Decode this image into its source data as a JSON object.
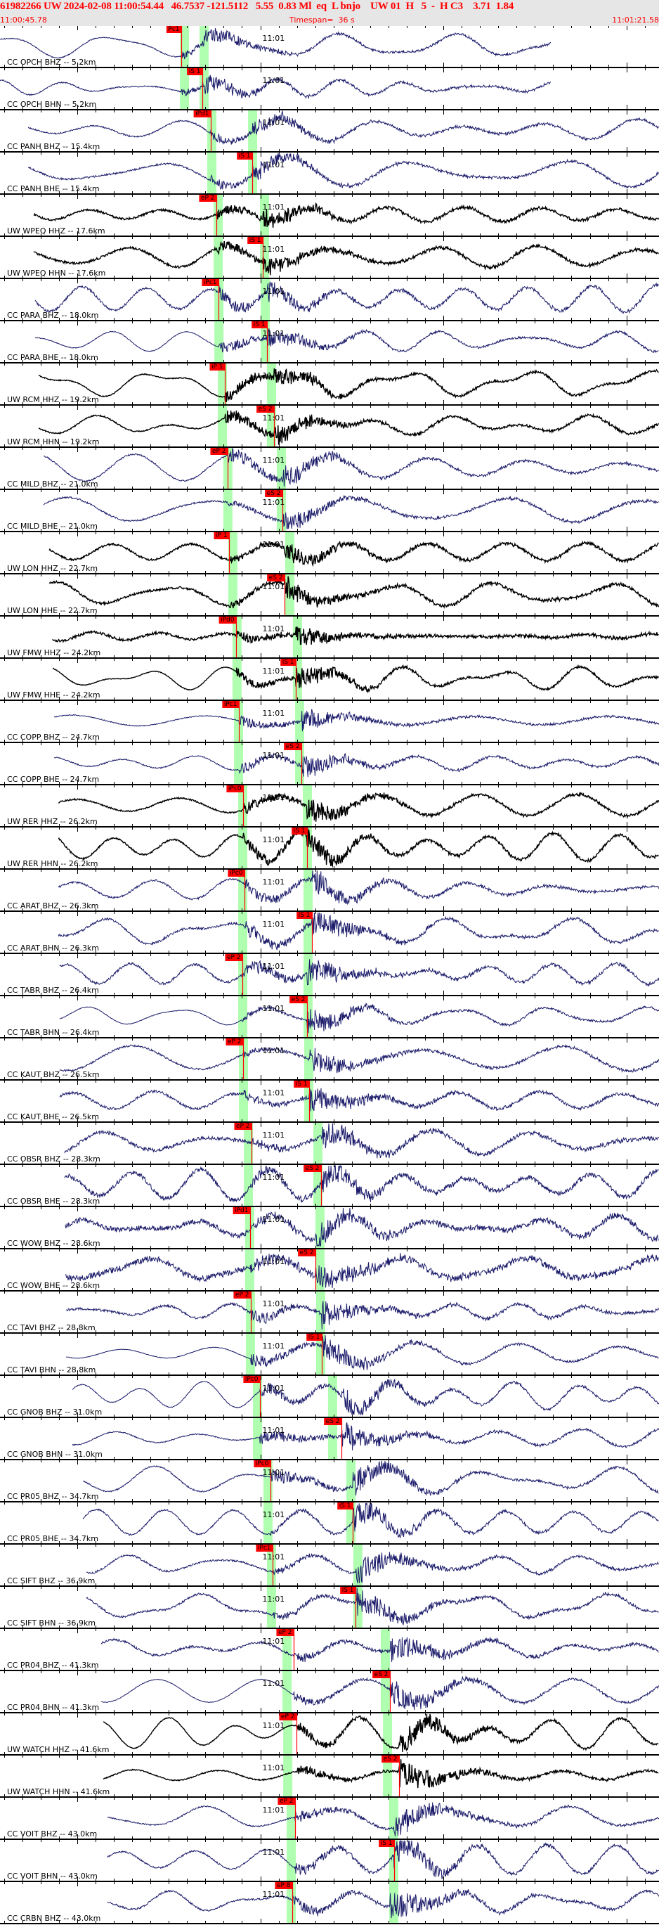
{
  "header": {
    "event_line": "61982266 UW 2024-02-08 11:00:54.44   46.7537 -121.5112   5.55  0.83 Ml  eq  L bnjo    UW 01  H   5  -  H C3    3.71  1.84",
    "start_time": "11:00:45.78",
    "timespan": "Timespan=  36 s",
    "end_time": "11:01:21.58"
  },
  "timespan_s": 36,
  "minute_mark": {
    "label": "11:01",
    "t": 14.22
  },
  "colors": {
    "header_bg": "#e6e6e6",
    "header_text": "#ff0000",
    "cc_trace": "#1c1c6b",
    "uw_trace": "#000000",
    "pick": "#ff0000",
    "window": "#b0ffb0"
  },
  "panels": [
    {
      "label": "CC OPCH BHZ -- 5.2km",
      "net": "cc",
      "start_s": 0,
      "end_s": 30.1,
      "p_win": 9.83,
      "s_win": 10.9,
      "pick": {
        "label": "Pc1",
        "t": 9.9
      },
      "p": 9.9,
      "s": 11.05
    },
    {
      "label": "CC OPCH BHN -- 5.2km",
      "net": "cc",
      "start_s": 0,
      "end_s": 30.1,
      "p_win": 9.83,
      "s_win": 10.9,
      "pick": {
        "label": "iS 1",
        "t": 11.05
      },
      "p": 9.9,
      "s": 11.05
    },
    {
      "label": "CC PANH BHZ -- 15.4km",
      "net": "cc",
      "start_s": 1.54,
      "p_win": 11.32,
      "s_win": 13.55,
      "pick": {
        "label": "iPd1",
        "t": 11.51
      },
      "p": 11.51,
      "s": 13.78
    },
    {
      "label": "CC PANH BHE -- 15.4km",
      "net": "cc",
      "start_s": 1.54,
      "p_win": 11.32,
      "s_win": 13.55,
      "pick": {
        "label": "iS 1",
        "t": 13.78
      },
      "p": 11.51,
      "s": 13.78
    },
    {
      "label": "UW WPEQ HHZ -- 17.6km",
      "net": "uw",
      "start_s": 1.84,
      "p_win": 11.67,
      "s_win": 14.2,
      "pick": {
        "label": "eP 2",
        "t": 11.82
      },
      "p": 11.82,
      "s": 14.35
    },
    {
      "label": "UW WPEQ HHN -- 17.6km",
      "net": "uw",
      "start_s": 1.84,
      "p_win": 11.67,
      "s_win": 14.2,
      "pick": {
        "label": "iS 1",
        "t": 14.35
      },
      "p": 11.82,
      "s": 14.35
    },
    {
      "label": "CC PARA BHZ -- 18.0km",
      "net": "cc",
      "start_s": 1.92,
      "p_win": 11.71,
      "s_win": 14.24,
      "pick": {
        "label": "iPc1",
        "t": 11.94
      },
      "p": 11.94,
      "s": 14.58
    },
    {
      "label": "CC PARA BHE -- 18.0km",
      "net": "cc",
      "start_s": 1.92,
      "p_win": 11.71,
      "s_win": 14.24,
      "pick": {
        "label": "iS 1",
        "t": 14.58
      },
      "p": 11.94,
      "s": 14.58
    },
    {
      "label": "UW RCM HHZ -- 19.2km",
      "net": "uw",
      "start_s": 2.11,
      "p_win": 11.9,
      "s_win": 14.58,
      "pick": {
        "label": "iP 1",
        "t": 12.28
      },
      "p": 12.28,
      "s": 14.97
    },
    {
      "label": "UW RCM HHN -- 19.2km",
      "net": "uw",
      "start_s": 2.11,
      "p_win": 11.9,
      "s_win": 14.58,
      "pick": {
        "label": "eS 2",
        "t": 14.97
      },
      "p": 12.28,
      "s": 14.97
    },
    {
      "label": "CC MILD BHZ -- 21.0km",
      "net": "cc",
      "start_s": 2.38,
      "p_win": 12.2,
      "s_win": 15.12,
      "pick": {
        "label": "eP 2",
        "t": 12.43
      },
      "p": 12.43,
      "s": 15.43
    },
    {
      "label": "CC MILD BHE -- 21.0km",
      "net": "cc",
      "start_s": 2.38,
      "p_win": 12.2,
      "s_win": 15.12,
      "pick": {
        "label": "eS 2",
        "t": 15.43
      },
      "p": 12.43,
      "s": 15.43
    },
    {
      "label": "UW LON HHZ -- 22.7km",
      "net": "uw",
      "start_s": 2.69,
      "p_win": 12.47,
      "s_win": 15.58,
      "pick": {
        "label": "iP 1",
        "t": 12.51
      },
      "p": 12.51,
      "s": 15.54
    },
    {
      "label": "UW LON HHE -- 22.7km",
      "net": "uw",
      "start_s": 2.69,
      "p_win": 12.47,
      "s_win": 15.58,
      "pick": {
        "label": "eS 2",
        "t": 15.54
      },
      "p": 12.51,
      "s": 15.54
    },
    {
      "label": "UW FMW HHZ -- 24.2km",
      "net": "uw",
      "start_s": 2.88,
      "p_win": 12.7,
      "s_win": 16.0,
      "pick": {
        "label": "iPd0",
        "t": 12.9
      },
      "p": 12.9,
      "s": 16.16
    },
    {
      "label": "UW FMW HHE -- 24.2km",
      "net": "uw",
      "start_s": 2.88,
      "p_win": 12.7,
      "s_win": 16.0,
      "pick": {
        "label": "iS 1",
        "t": 16.16
      },
      "p": 12.9,
      "s": 16.16
    },
    {
      "label": "CC COPP BHZ -- 24.7km",
      "net": "cc",
      "start_s": 2.96,
      "p_win": 12.78,
      "s_win": 16.12,
      "pick": {
        "label": "iPc1",
        "t": 13.05
      },
      "p": 13.05,
      "s": 16.46
    },
    {
      "label": "CC COPP BHE -- 24.7km",
      "net": "cc",
      "start_s": 2.96,
      "p_win": 12.78,
      "s_win": 16.12,
      "pick": {
        "label": "eS 2",
        "t": 16.46
      },
      "p": 13.05,
      "s": 16.46
    },
    {
      "label": "UW RER HHZ -- 26.2km",
      "net": "uw",
      "start_s": 3.19,
      "p_win": 13.01,
      "s_win": 16.54,
      "pick": {
        "label": "iPc0",
        "t": 13.28
      },
      "p": 13.28,
      "s": 16.77
    },
    {
      "label": "UW RER HHN -- 26.2km",
      "net": "uw",
      "start_s": 3.19,
      "p_win": 13.01,
      "s_win": 16.54,
      "pick": {
        "label": "iS 1",
        "t": 16.77
      },
      "p": 13.28,
      "s": 16.77
    },
    {
      "label": "CC ARAT BHZ -- 26.3km",
      "net": "cc",
      "start_s": 3.19,
      "p_win": 13.01,
      "s_win": 16.58,
      "pick": {
        "label": "iPc0",
        "t": 13.36
      },
      "p": 13.36,
      "s": 17.04
    },
    {
      "label": "CC ARAT BHN -- 26.3km",
      "net": "cc",
      "start_s": 3.19,
      "p_win": 13.01,
      "s_win": 16.58,
      "pick": {
        "label": "iS 1",
        "t": 17.04
      },
      "p": 13.36,
      "s": 17.04
    },
    {
      "label": "CC TABR BHZ -- 26.4km",
      "net": "cc",
      "start_s": 3.26,
      "p_win": 13.01,
      "s_win": 16.58,
      "pick": {
        "label": "eP 2",
        "t": 13.24
      },
      "p": 13.24,
      "s": 16.77
    },
    {
      "label": "CC TABR BHN -- 26.4km",
      "net": "cc",
      "start_s": 3.26,
      "p_win": 13.01,
      "s_win": 16.58,
      "pick": {
        "label": "eS 2",
        "t": 16.77
      },
      "p": 13.24,
      "s": 16.77
    },
    {
      "label": "CC KAUT BHZ -- 26.5km",
      "net": "cc",
      "start_s": 3.26,
      "p_win": 13.05,
      "s_win": 16.62,
      "pick": {
        "label": "eP 2",
        "t": 13.28
      },
      "p": 13.28,
      "s": 16.89
    },
    {
      "label": "CC KAUT BHE -- 26.5km",
      "net": "cc",
      "start_s": 3.26,
      "p_win": 13.05,
      "s_win": 16.62,
      "pick": {
        "label": "iS 1",
        "t": 16.89
      },
      "p": 13.28,
      "s": 16.89
    },
    {
      "label": "CC OBSR BHZ -- 28.3km",
      "net": "cc",
      "start_s": 3.53,
      "p_win": 13.32,
      "s_win": 17.12,
      "pick": {
        "label": "eP 2",
        "t": 13.74
      },
      "p": 13.74,
      "s": 17.54
    },
    {
      "label": "CC OBSR BHE -- 28.3km",
      "net": "cc",
      "start_s": 3.53,
      "p_win": 13.32,
      "s_win": 17.12,
      "pick": {
        "label": "eS 2",
        "t": 17.54
      },
      "p": 13.74,
      "s": 17.54
    },
    {
      "label": "CC WOW BHZ -- 28.6km",
      "net": "cc",
      "start_s": 3.57,
      "p_win": 13.39,
      "s_win": 17.23,
      "pick": {
        "label": "iPd1",
        "t": 13.66
      },
      "p": 13.66,
      "s": 17.23
    },
    {
      "label": "CC WOW BHE -- 28.6km",
      "net": "cc",
      "start_s": 3.57,
      "p_win": 13.39,
      "s_win": 17.23,
      "pick": {
        "label": "eS 2",
        "t": 17.23
      },
      "p": 13.66,
      "s": 17.23
    },
    {
      "label": "CC TAVI BHZ -- 28.8km",
      "net": "cc",
      "start_s": 3.61,
      "p_win": 13.43,
      "s_win": 17.27,
      "pick": {
        "label": "eP 2",
        "t": 13.7
      },
      "p": 13.7,
      "s": 17.58
    },
    {
      "label": "CC TAVI BHN -- 28.8km",
      "net": "cc",
      "start_s": 3.61,
      "p_win": 13.43,
      "s_win": 17.27,
      "pick": {
        "label": "iS 1",
        "t": 17.58
      },
      "p": 13.7,
      "s": 17.58
    },
    {
      "label": "CC GNOB BHZ -- 31.0km",
      "net": "cc",
      "start_s": 3.95,
      "p_win": 13.82,
      "s_win": 17.92,
      "pick": {
        "label": "iPc0",
        "t": 14.2
      },
      "p": 14.2,
      "s": 18.65
    },
    {
      "label": "CC GNOB BHN -- 31.0km",
      "net": "cc",
      "start_s": 3.95,
      "p_win": 13.82,
      "s_win": 17.92,
      "pick": {
        "label": "eS 2",
        "t": 18.65
      },
      "p": 14.2,
      "s": 18.65
    },
    {
      "label": "CC PR05 BHZ -- 34.7km",
      "net": "cc",
      "start_s": 4.53,
      "p_win": 14.39,
      "s_win": 18.92,
      "pick": {
        "label": "iPc0",
        "t": 14.78
      },
      "p": 14.78,
      "s": 19.27
    },
    {
      "label": "CC PR05 BHE -- 34.7km",
      "net": "cc",
      "start_s": 4.53,
      "p_win": 14.39,
      "s_win": 18.92,
      "pick": {
        "label": "iS 1",
        "t": 19.27
      },
      "p": 14.78,
      "s": 19.27
    },
    {
      "label": "CC SIFT BHZ -- 36.9km",
      "net": "cc",
      "start_s": 4.72,
      "p_win": 14.58,
      "s_win": 19.3,
      "pick": {
        "label": "iPc1",
        "t": 14.89
      },
      "p": 14.89,
      "s": 19.42
    },
    {
      "label": "CC SIFT BHN -- 36.9km",
      "net": "cc",
      "start_s": 4.72,
      "p_win": 14.58,
      "s_win": 19.3,
      "pick": {
        "label": "iS 1",
        "t": 19.42
      },
      "p": 14.89,
      "s": 19.42
    },
    {
      "label": "CC PR04 BHZ -- 41.3km",
      "net": "cc",
      "start_s": 5.53,
      "p_win": 15.43,
      "s_win": 20.8,
      "pick": {
        "label": "eP 2",
        "t": 16.04
      },
      "p": 16.04,
      "s": 21.3
    },
    {
      "label": "CC PR04 BHN -- 41.3km",
      "net": "cc",
      "start_s": 5.53,
      "p_win": 15.43,
      "s_win": 20.8,
      "pick": {
        "label": "eS 2",
        "t": 21.3
      },
      "p": 16.04,
      "s": 21.3
    },
    {
      "label": "UW WATCH HHZ -- 41.6km",
      "net": "uw",
      "start_s": 5.64,
      "p_win": 15.47,
      "s_win": 20.92,
      "pick": {
        "label": "eP 2",
        "t": 16.2
      },
      "p": 16.2,
      "s": 21.8
    },
    {
      "label": "UW WATCH HHN -- 41.6km",
      "net": "uw",
      "start_s": 5.64,
      "p_win": 15.47,
      "s_win": 20.92,
      "pick": {
        "label": "eS 2",
        "t": 21.8
      },
      "p": 16.2,
      "s": 21.8
    },
    {
      "label": "CC VOIT BHZ -- 43.0km",
      "net": "cc",
      "start_s": 5.87,
      "p_win": 15.66,
      "s_win": 21.26,
      "pick": {
        "label": "eP 2",
        "t": 16.12
      },
      "p": 16.12,
      "s": 21.53
    },
    {
      "label": "CC VOIT BHN -- 43.0km",
      "net": "cc",
      "start_s": 5.87,
      "p_win": 15.66,
      "s_win": 21.26,
      "pick": {
        "label": "iS 1",
        "t": 21.53
      },
      "p": 16.12,
      "s": 21.53
    },
    {
      "label": "CC CRBN BHZ -- 43.0km",
      "net": "cc",
      "start_s": 5.87,
      "p_win": 15.66,
      "s_win": 21.26,
      "pick": {
        "label": "eP 8",
        "t": 15.97
      },
      "p": 15.97,
      "s": 21.3
    }
  ]
}
